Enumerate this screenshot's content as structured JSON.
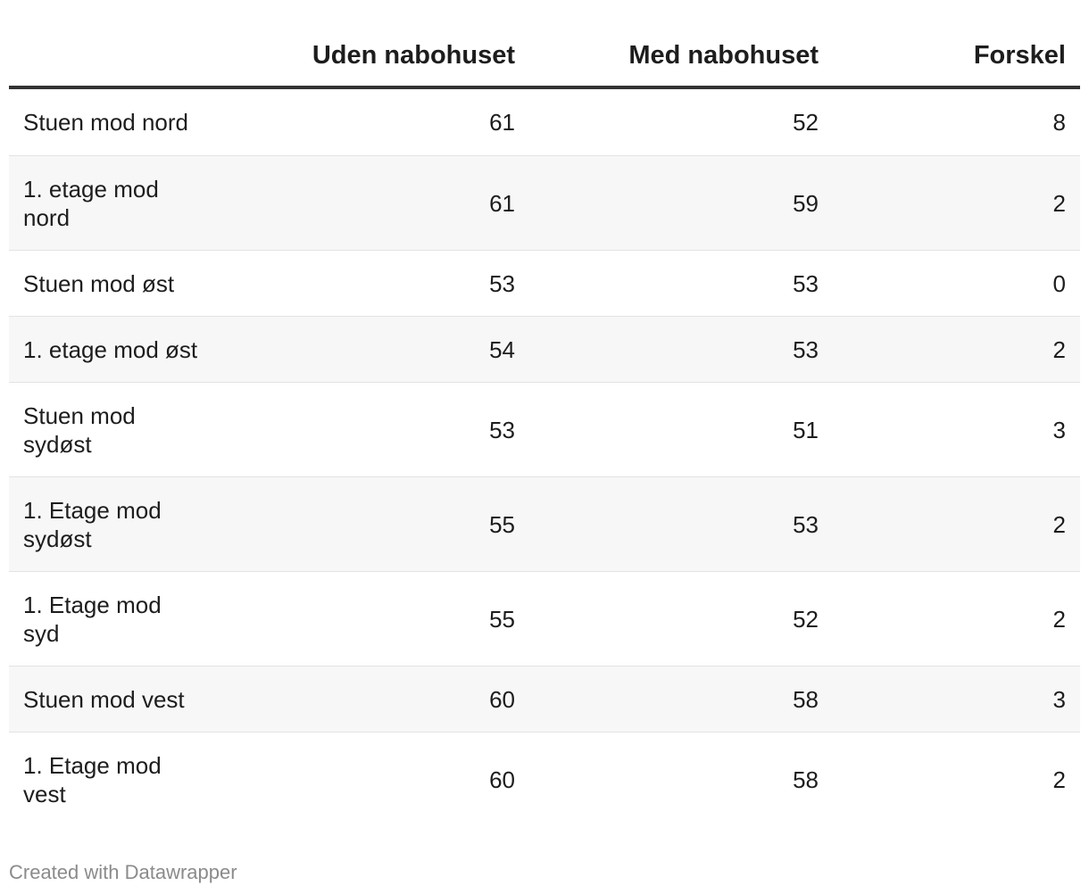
{
  "chart_data": {
    "type": "table",
    "columns": [
      "",
      "Uden nabohuset",
      "Med nabohuset",
      "Forskel"
    ],
    "rows": [
      {
        "label": "Stuen mod nord",
        "uden": "61",
        "med": "52",
        "forskel": "8"
      },
      {
        "label": "1. etage mod nord",
        "uden": "61",
        "med": "59",
        "forskel": "2"
      },
      {
        "label": "Stuen mod øst",
        "uden": "53",
        "med": "53",
        "forskel": "0"
      },
      {
        "label": "1. etage mod øst",
        "uden": "54",
        "med": "53",
        "forskel": "2"
      },
      {
        "label": "Stuen mod sydøst",
        "uden": "53",
        "med": "51",
        "forskel": "3"
      },
      {
        "label": "1. Etage mod sydøst",
        "uden": "55",
        "med": "53",
        "forskel": "2"
      },
      {
        "label": "1. Etage mod syd",
        "uden": "55",
        "med": "52",
        "forskel": "2"
      },
      {
        "label": "Stuen mod vest",
        "uden": "60",
        "med": "58",
        "forskel": "3"
      },
      {
        "label": "1. Etage mod vest",
        "uden": "60",
        "med": "58",
        "forskel": "2"
      }
    ]
  },
  "footer": {
    "credit": "Created with Datawrapper"
  },
  "colors": {
    "text": "#1d1d1d",
    "header_rule": "#333333",
    "row_divider": "#e3e3e3",
    "stripe": "#f7f7f7",
    "credit": "#8b8b8b"
  }
}
